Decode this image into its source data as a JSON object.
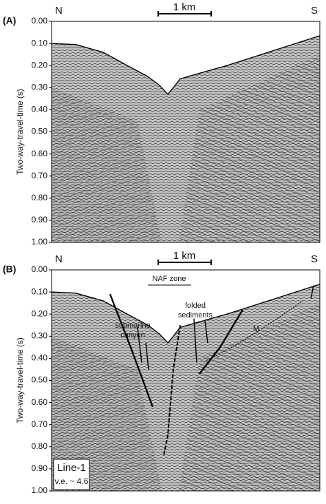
{
  "panels": [
    {
      "label": "(A)",
      "left": "N",
      "right": "S",
      "scale": "1 km",
      "y_axis_title": "Two-way-travel-time (s)",
      "yticks": [
        "0.00",
        "0.10",
        "0.20",
        "0.30",
        "0.40",
        "0.50",
        "0.60",
        "0.70",
        "0.80",
        "0.90",
        "1.00"
      ]
    },
    {
      "label": "(B)",
      "left": "N",
      "right": "S",
      "scale": "1 km",
      "y_axis_title": "Two-way-travel-time (s)",
      "yticks": [
        "0.00",
        "0.10",
        "0.20",
        "0.30",
        "0.40",
        "0.50",
        "0.60",
        "0.70",
        "0.80",
        "0.90",
        "1.00"
      ],
      "annotations": {
        "zone": "NAF zone",
        "canyon_1": "submarine",
        "canyon_2": "canyon",
        "folded_1": "folded",
        "folded_2": "sediments",
        "horizon": "M",
        "line": "Line-1",
        "ve": "v.e. ~ 4.6"
      }
    }
  ]
}
